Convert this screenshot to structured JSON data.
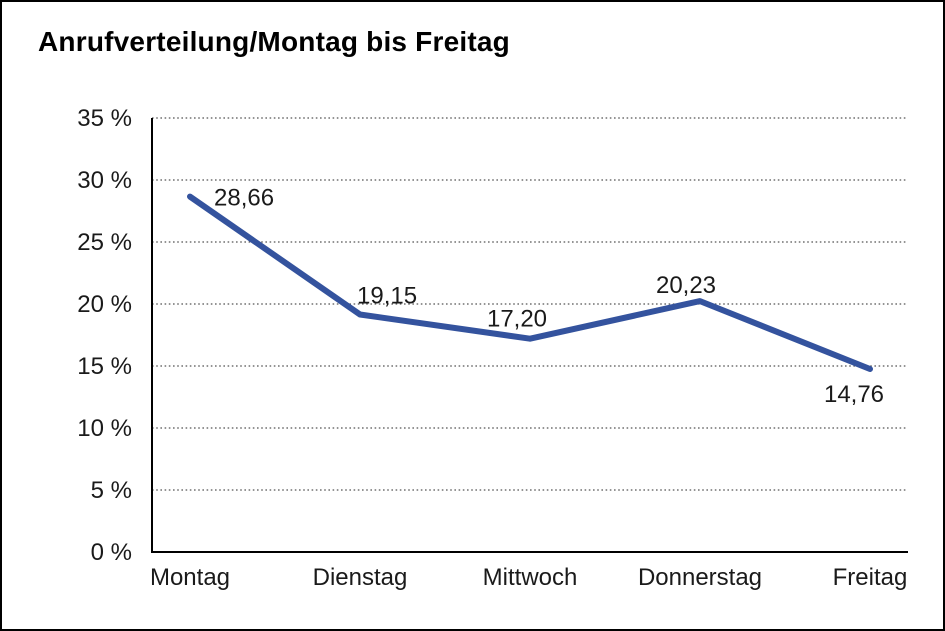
{
  "title": "Anrufverteilung/Montag bis Freitag",
  "chart_data": {
    "type": "line",
    "title": "Anrufverteilung/Montag bis Freitag",
    "categories": [
      "Montag",
      "Dienstag",
      "Mittwoch",
      "Donnerstag",
      "Freitag"
    ],
    "values": [
      28.66,
      19.15,
      17.2,
      20.23,
      14.76
    ],
    "point_labels": [
      "28,66",
      "19,15",
      "17,20",
      "20,23",
      "14,76"
    ],
    "xlabel": "",
    "ylabel": "",
    "ylim": [
      0,
      35
    ],
    "ytick_step": 5,
    "ytick_labels": [
      "0 %",
      "5 %",
      "10 %",
      "15 %",
      "20 %",
      "25 %",
      "30 %",
      "35 %"
    ],
    "grid": "horizontal-dotted",
    "legend": "none",
    "unit": "%"
  },
  "colors": {
    "line": "#34539E",
    "grid": "#555555",
    "axis": "#000000",
    "text": "#1a1a1a",
    "background": "#ffffff",
    "frame_border": "#000000"
  }
}
